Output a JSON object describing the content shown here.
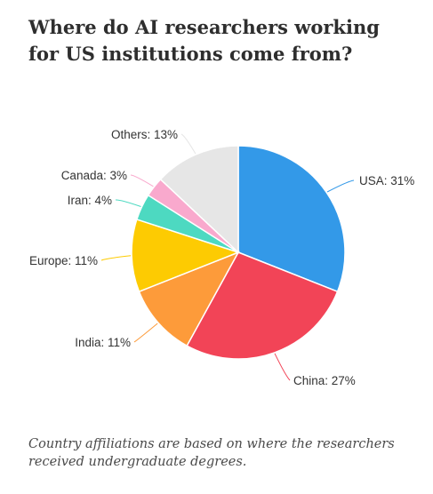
{
  "title": "Where do AI researchers working for US institutions come from?",
  "caption": "Country affiliations are based on where the researchers received undergraduate degrees.",
  "chart_data": {
    "type": "pie",
    "title": "Where do AI researchers working for US institutions come from?",
    "slices": [
      {
        "name": "USA",
        "value": 31,
        "label": "USA: 31%",
        "color": "#3399e8"
      },
      {
        "name": "China",
        "value": 27,
        "label": "China: 27%",
        "color": "#f24457"
      },
      {
        "name": "India",
        "value": 11,
        "label": "India: 11%",
        "color": "#fd9b3a"
      },
      {
        "name": "Europe",
        "value": 11,
        "label": "Europe: 11%",
        "color": "#fdcb02"
      },
      {
        "name": "Iran",
        "value": 4,
        "label": "Iran: 4%",
        "color": "#4dd9c1"
      },
      {
        "name": "Canada",
        "value": 3,
        "label": "Canada: 3%",
        "color": "#f9a9cd"
      },
      {
        "name": "Others",
        "value": 13,
        "label": "Others: 13%",
        "color": "#e6e6e6"
      }
    ]
  }
}
